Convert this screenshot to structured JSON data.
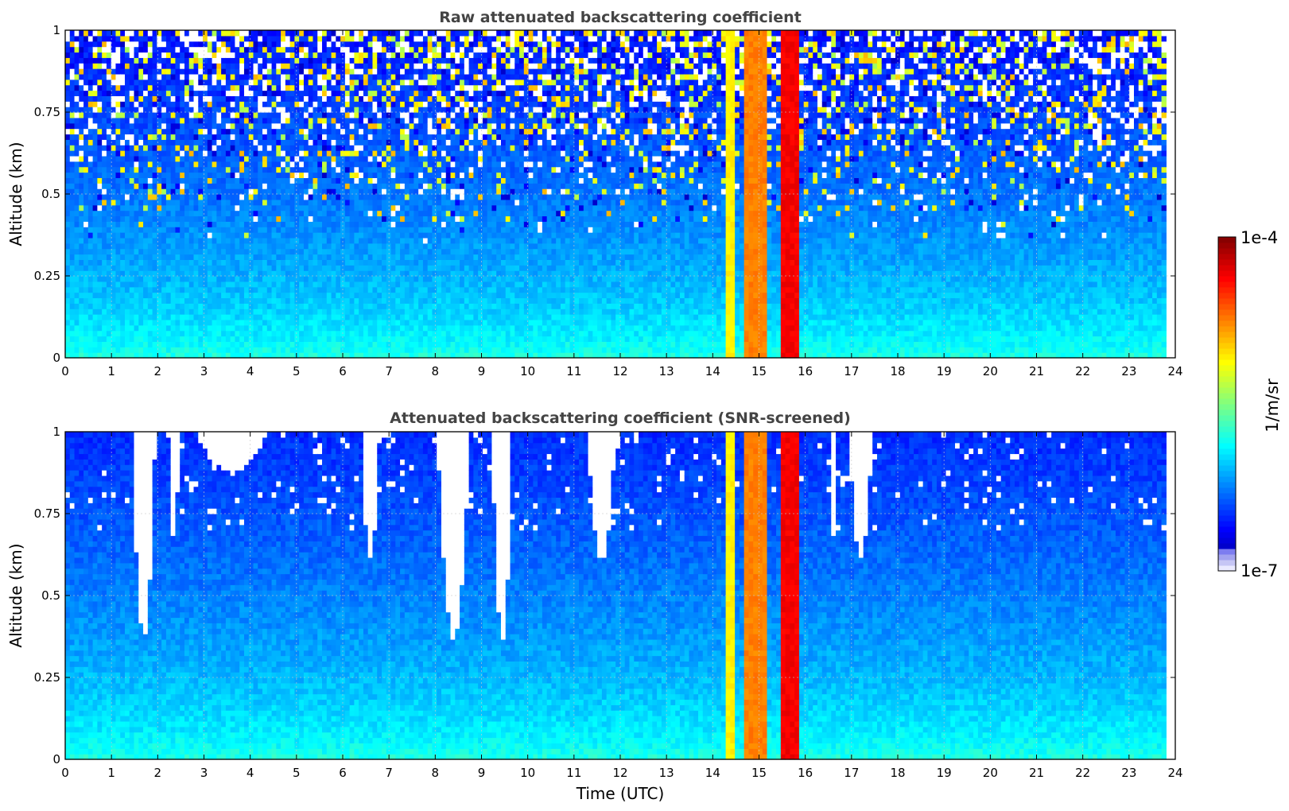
{
  "chart_data": [
    {
      "type": "heatmap",
      "title": "Raw attenuated backscattering coefficient",
      "xlabel": "",
      "ylabel": "Altitude (km)",
      "xlim": [
        0,
        24
      ],
      "ylim": [
        0,
        1
      ],
      "x_ticks": [
        0,
        1,
        2,
        3,
        4,
        5,
        6,
        7,
        8,
        9,
        10,
        11,
        12,
        13,
        14,
        15,
        16,
        17,
        18,
        19,
        20,
        21,
        22,
        23,
        24
      ],
      "y_ticks": [
        0,
        0.25,
        0.5,
        0.75,
        1
      ],
      "y_tick_labels": [
        "0",
        "0.25",
        "0.5",
        "0.75",
        "1"
      ],
      "grid": true,
      "data_end_hour": 23.8,
      "background_log10": {
        "surface": -5.75,
        "top": -6.55
      },
      "bright_bands_hours": [
        {
          "start": 14.25,
          "end": 14.45,
          "log10": -5.1
        },
        {
          "start": 14.7,
          "end": 15.2,
          "log10": -4.75
        },
        {
          "start": 15.45,
          "end": 15.9,
          "log10": -4.35
        }
      ],
      "noise_at_altitude": true,
      "screened_gaps": []
    },
    {
      "type": "heatmap",
      "title": "Attenuated backscattering coefficient (SNR-screened)",
      "xlabel": "Time (UTC)",
      "ylabel": "Altitude (km)",
      "xlim": [
        0,
        24
      ],
      "ylim": [
        0,
        1
      ],
      "x_ticks": [
        0,
        1,
        2,
        3,
        4,
        5,
        6,
        7,
        8,
        9,
        10,
        11,
        12,
        13,
        14,
        15,
        16,
        17,
        18,
        19,
        20,
        21,
        22,
        23,
        24
      ],
      "y_ticks": [
        0,
        0.25,
        0.5,
        0.75,
        1
      ],
      "y_tick_labels": [
        "0",
        "0.25",
        "0.5",
        "0.75",
        "1"
      ],
      "grid": true,
      "data_end_hour": 23.8,
      "background_log10": {
        "surface": -5.75,
        "top": -6.5
      },
      "bright_bands_hours": [
        {
          "start": 14.25,
          "end": 14.45,
          "log10": -5.1
        },
        {
          "start": 14.7,
          "end": 15.2,
          "log10": -4.75
        },
        {
          "start": 15.45,
          "end": 15.9,
          "log10": -4.35
        }
      ],
      "noise_at_altitude": false,
      "screened_gaps": [
        {
          "center": 1.7,
          "half_width": 0.25,
          "bottom_km": 0.37
        },
        {
          "center": 2.35,
          "half_width": 0.12,
          "bottom_km": 0.68
        },
        {
          "center": 3.6,
          "half_width": 0.8,
          "bottom_km": 0.88
        },
        {
          "center": 6.6,
          "half_width": 0.2,
          "bottom_km": 0.62
        },
        {
          "center": 8.4,
          "half_width": 0.35,
          "bottom_km": 0.37
        },
        {
          "center": 9.45,
          "half_width": 0.22,
          "bottom_km": 0.36
        },
        {
          "center": 11.6,
          "half_width": 0.3,
          "bottom_km": 0.6
        },
        {
          "center": 17.2,
          "half_width": 0.25,
          "bottom_km": 0.62
        },
        {
          "center": 16.6,
          "half_width": 0.08,
          "bottom_km": 0.67
        }
      ]
    }
  ],
  "colorbar": {
    "label": "1/m/sr",
    "max_label": "1e-4",
    "min_label": "1e-7",
    "log10_min": -7,
    "log10_max": -4,
    "colormap": "jet"
  }
}
